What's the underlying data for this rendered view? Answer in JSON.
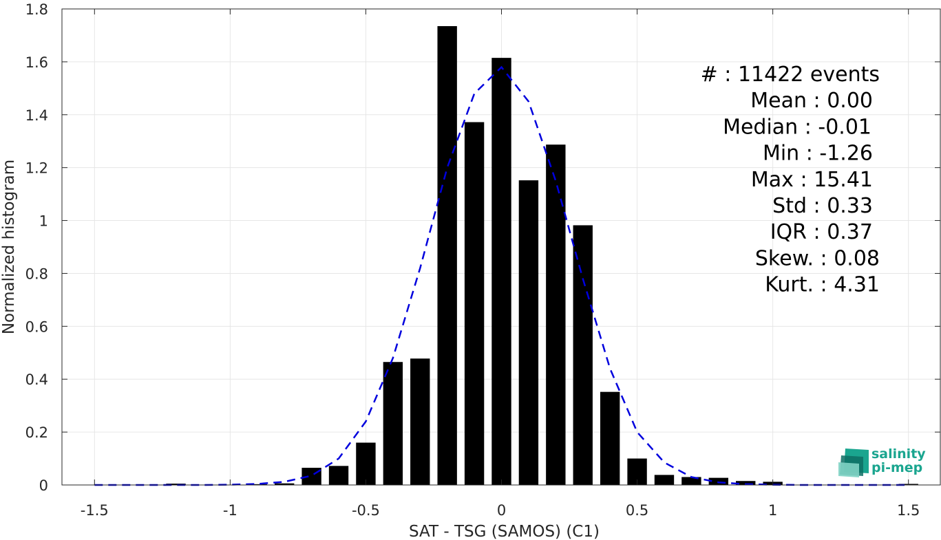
{
  "chart_data": {
    "type": "bar",
    "xlabel": "SAT - TSG (SAMOS) (C1)",
    "ylabel": "Normalized histogram",
    "xlim": [
      -1.62,
      1.62
    ],
    "ylim": [
      0,
      1.8
    ],
    "grid": true,
    "bar_width": 0.072,
    "bar_color": "#000000",
    "x_ticks": [
      -1.5,
      -1,
      -0.5,
      0,
      0.5,
      1,
      1.5
    ],
    "x_tick_labels": [
      "-1.5",
      "-1",
      "-0.5",
      "0",
      "0.5",
      "1",
      "1.5"
    ],
    "y_ticks": [
      0,
      0.2,
      0.4,
      0.6,
      0.8,
      1,
      1.2,
      1.4,
      1.6,
      1.8
    ],
    "y_tick_labels": [
      "0",
      "0.2",
      "0.4",
      "0.6",
      "0.8",
      "1",
      "1.2",
      "1.4",
      "1.6",
      "1.8"
    ],
    "bins": [
      -1.2,
      -0.9,
      -0.8,
      -0.7,
      -0.6,
      -0.5,
      -0.4,
      -0.3,
      -0.2,
      -0.1,
      0.0,
      0.1,
      0.2,
      0.3,
      0.4,
      0.5,
      0.6,
      0.7,
      0.8,
      0.9,
      1.0,
      1.5
    ],
    "values": [
      0.005,
      0.003,
      0.006,
      0.065,
      0.072,
      0.16,
      0.465,
      0.478,
      1.735,
      1.372,
      1.615,
      1.152,
      1.287,
      0.982,
      0.352,
      0.1,
      0.038,
      0.03,
      0.027,
      0.015,
      0.012,
      0.004
    ],
    "fit_curve": {
      "color": "#0000dd",
      "style": "dashed",
      "x": [
        -1.5,
        -1.4,
        -1.3,
        -1.2,
        -1.1,
        -1.0,
        -0.9,
        -0.8,
        -0.7,
        -0.6,
        -0.5,
        -0.4,
        -0.3,
        -0.2,
        -0.1,
        0.0,
        0.1,
        0.2,
        0.3,
        0.4,
        0.5,
        0.6,
        0.7,
        0.8,
        0.9,
        1.0,
        1.1,
        1.2,
        1.3,
        1.4,
        1.5
      ],
      "y": [
        0,
        0,
        0,
        0,
        0,
        0.001,
        0.004,
        0.012,
        0.035,
        0.1,
        0.24,
        0.48,
        0.82,
        1.2,
        1.48,
        1.58,
        1.45,
        1.15,
        0.78,
        0.44,
        0.2,
        0.085,
        0.03,
        0.01,
        0.003,
        0.001,
        0,
        0,
        0,
        0,
        0
      ]
    },
    "annotations": [
      "#  : 11422 events",
      "Mean : 0.00",
      "Median : -0.01",
      "Min : -1.26",
      "Max : 15.41",
      "Std : 0.33",
      "IQR : 0.37",
      "Skew. : 0.08",
      "Kurt. : 4.31"
    ]
  },
  "logo": {
    "line1": "salinity",
    "line2": "pi-mep",
    "colors": [
      "#1aa58f",
      "#7fd3c4",
      "#0e6e64"
    ]
  }
}
